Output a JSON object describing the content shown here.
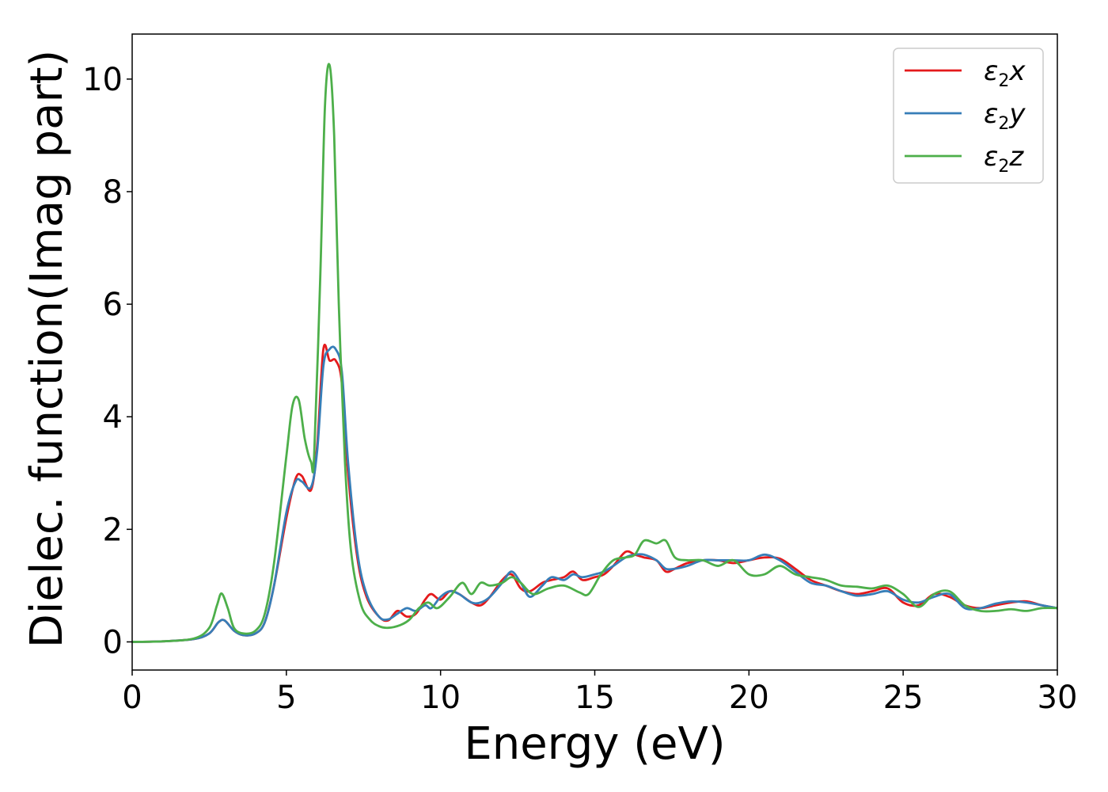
{
  "chart_data": {
    "type": "line",
    "xlabel": "Energy (eV)",
    "ylabel": "Dielec. function(Imag part)",
    "xlim": [
      0,
      30
    ],
    "ylim": [
      -0.5,
      10.8
    ],
    "xticks": [
      0,
      5,
      10,
      15,
      20,
      25,
      30
    ],
    "yticks": [
      0,
      2,
      4,
      6,
      8,
      10
    ],
    "grid": false,
    "legend_position": "top-right",
    "series": [
      {
        "name": "ε₂x",
        "legend_base": "ε",
        "legend_sub": "2",
        "legend_suffix": "x",
        "color": "#e41a1c",
        "x": [
          0,
          1,
          2,
          2.5,
          2.8,
          3.0,
          3.3,
          3.6,
          4.0,
          4.3,
          4.6,
          5.0,
          5.3,
          5.5,
          5.8,
          6.0,
          6.2,
          6.4,
          6.6,
          6.8,
          7.0,
          7.3,
          7.6,
          8.0,
          8.3,
          8.6,
          8.9,
          9.2,
          9.5,
          9.7,
          10.0,
          10.3,
          10.6,
          11.0,
          11.3,
          11.6,
          12.0,
          12.3,
          12.6,
          12.9,
          13.3,
          13.6,
          14.0,
          14.3,
          14.6,
          15.0,
          15.3,
          15.6,
          16.0,
          16.3,
          16.6,
          17.0,
          17.3,
          17.6,
          18.0,
          18.5,
          19.0,
          19.5,
          20.0,
          20.5,
          21.0,
          21.5,
          22.0,
          22.5,
          23.0,
          23.5,
          24.0,
          24.5,
          25.0,
          25.5,
          26.0,
          26.5,
          27.0,
          27.5,
          28.0,
          28.5,
          29.0,
          29.5,
          30
        ],
        "y": [
          0,
          0.01,
          0.05,
          0.15,
          0.35,
          0.38,
          0.2,
          0.12,
          0.15,
          0.35,
          1.0,
          2.2,
          2.9,
          2.95,
          2.7,
          3.5,
          5.2,
          5.0,
          5.0,
          4.6,
          3.0,
          1.5,
          0.8,
          0.45,
          0.38,
          0.55,
          0.45,
          0.5,
          0.75,
          0.85,
          0.75,
          0.9,
          0.85,
          0.7,
          0.65,
          0.8,
          1.1,
          1.2,
          0.95,
          0.9,
          1.05,
          1.1,
          1.15,
          1.25,
          1.1,
          1.15,
          1.2,
          1.35,
          1.6,
          1.55,
          1.5,
          1.45,
          1.25,
          1.3,
          1.4,
          1.45,
          1.45,
          1.4,
          1.45,
          1.5,
          1.48,
          1.3,
          1.1,
          1.0,
          0.9,
          0.85,
          0.9,
          0.95,
          0.7,
          0.65,
          0.85,
          0.8,
          0.65,
          0.6,
          0.65,
          0.7,
          0.72,
          0.65,
          0.6
        ]
      },
      {
        "name": "ε₂y",
        "legend_base": "ε",
        "legend_sub": "2",
        "legend_suffix": "y",
        "color": "#377eb8",
        "x": [
          0,
          1,
          2,
          2.5,
          2.8,
          3.0,
          3.3,
          3.6,
          4.0,
          4.3,
          4.6,
          5.0,
          5.3,
          5.5,
          5.8,
          6.0,
          6.2,
          6.4,
          6.6,
          6.8,
          7.0,
          7.3,
          7.6,
          8.0,
          8.3,
          8.6,
          8.9,
          9.2,
          9.5,
          9.7,
          10.0,
          10.3,
          10.6,
          11.0,
          11.3,
          11.6,
          12.0,
          12.3,
          12.6,
          12.9,
          13.3,
          13.6,
          14.0,
          14.3,
          14.6,
          15.0,
          15.3,
          15.6,
          16.0,
          16.3,
          16.6,
          17.0,
          17.3,
          17.6,
          18.0,
          18.5,
          19.0,
          19.5,
          20.0,
          20.5,
          21.0,
          21.5,
          22.0,
          22.5,
          23.0,
          23.5,
          24.0,
          24.5,
          25.0,
          25.5,
          26.0,
          26.5,
          27.0,
          27.5,
          28.0,
          28.5,
          29.0,
          29.5,
          30
        ],
        "y": [
          0,
          0.01,
          0.05,
          0.15,
          0.35,
          0.38,
          0.2,
          0.12,
          0.15,
          0.35,
          1.0,
          2.3,
          2.85,
          2.85,
          2.75,
          3.4,
          4.9,
          5.2,
          5.2,
          4.8,
          3.2,
          1.6,
          0.85,
          0.45,
          0.4,
          0.5,
          0.6,
          0.55,
          0.65,
          0.6,
          0.8,
          0.9,
          0.85,
          0.7,
          0.7,
          0.8,
          1.05,
          1.25,
          1.05,
          0.8,
          1.0,
          1.15,
          1.1,
          1.2,
          1.15,
          1.2,
          1.25,
          1.35,
          1.5,
          1.55,
          1.55,
          1.45,
          1.3,
          1.3,
          1.35,
          1.45,
          1.45,
          1.45,
          1.45,
          1.55,
          1.45,
          1.25,
          1.05,
          1.0,
          0.9,
          0.82,
          0.85,
          0.9,
          0.75,
          0.7,
          0.8,
          0.85,
          0.6,
          0.6,
          0.68,
          0.72,
          0.7,
          0.65,
          0.6
        ]
      },
      {
        "name": "ε₂z",
        "legend_base": "ε",
        "legend_sub": "2",
        "legend_suffix": "z",
        "color": "#4daf4a",
        "x": [
          0,
          1,
          2,
          2.5,
          2.75,
          2.9,
          3.1,
          3.3,
          3.6,
          4.0,
          4.3,
          4.6,
          5.0,
          5.2,
          5.4,
          5.6,
          5.8,
          5.9,
          6.1,
          6.25,
          6.4,
          6.55,
          6.7,
          6.9,
          7.1,
          7.4,
          7.7,
          8.0,
          8.3,
          8.7,
          9.0,
          9.3,
          9.6,
          9.9,
          10.3,
          10.7,
          11.0,
          11.3,
          11.6,
          12.0,
          12.3,
          12.6,
          13.0,
          13.5,
          14.0,
          14.5,
          14.8,
          15.2,
          15.6,
          16.0,
          16.3,
          16.6,
          17.0,
          17.3,
          17.6,
          18.0,
          18.5,
          19.0,
          19.5,
          20.0,
          20.5,
          21.0,
          21.5,
          22.0,
          22.5,
          23.0,
          23.5,
          24.0,
          24.5,
          25.0,
          25.5,
          26.0,
          26.5,
          27.0,
          27.5,
          28.0,
          28.5,
          29.0,
          29.5,
          30
        ],
        "y": [
          0,
          0.01,
          0.06,
          0.25,
          0.65,
          0.86,
          0.6,
          0.25,
          0.15,
          0.2,
          0.5,
          1.4,
          3.3,
          4.2,
          4.3,
          3.6,
          3.2,
          3.3,
          6.5,
          9.5,
          10.25,
          9.0,
          6.0,
          3.2,
          1.6,
          0.7,
          0.4,
          0.28,
          0.25,
          0.3,
          0.4,
          0.6,
          0.7,
          0.6,
          0.8,
          1.05,
          0.85,
          1.05,
          1.0,
          1.05,
          1.15,
          1.05,
          0.85,
          0.95,
          1.0,
          0.88,
          0.85,
          1.2,
          1.45,
          1.5,
          1.55,
          1.8,
          1.75,
          1.8,
          1.5,
          1.45,
          1.45,
          1.35,
          1.45,
          1.2,
          1.2,
          1.35,
          1.2,
          1.15,
          1.1,
          1.0,
          0.98,
          0.95,
          1.0,
          0.85,
          0.62,
          0.85,
          0.9,
          0.65,
          0.55,
          0.55,
          0.58,
          0.55,
          0.6,
          0.6
        ]
      }
    ]
  }
}
